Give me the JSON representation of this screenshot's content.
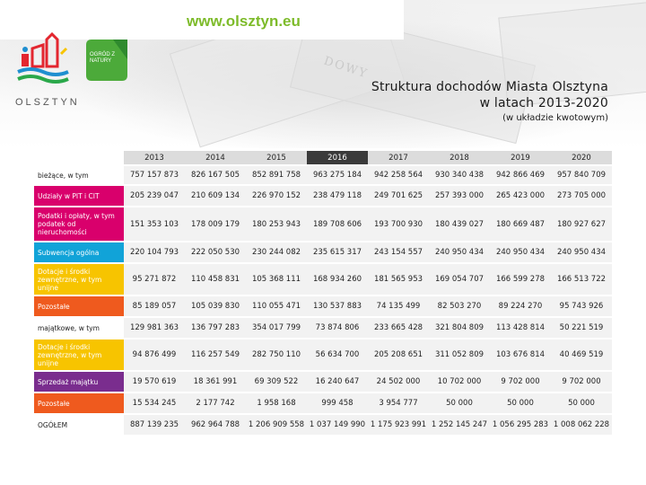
{
  "header": {
    "url": "www.olsztyn.eu",
    "logo_city_text": "OLSZTYN",
    "logo_garden_text": "OGRÓD Z NATURY"
  },
  "title": {
    "line1": "Struktura dochodów Miasta Olsztyna",
    "line2": "w latach 2013-2020",
    "subtitle": "(w układzie kwotowym)"
  },
  "years": [
    "2013",
    "2014",
    "2015",
    "2016",
    "2017",
    "2018",
    "2019",
    "2020"
  ],
  "rows": [
    {
      "label": "bieżące, w tym",
      "values": [
        "757 157 873",
        "826 167 505",
        "852 891 758",
        "963 275 184",
        "942 258 564",
        "930 340 438",
        "942 866 469",
        "957 840 709"
      ]
    },
    {
      "label": "Udziały w PIT i CIT",
      "values": [
        "205 239 047",
        "210 609 134",
        "226 970 152",
        "238 479 118",
        "249 701 625",
        "257 393 000",
        "265 423 000",
        "273 705 000"
      ]
    },
    {
      "label": "Podatki i opłaty, w tym podatek od nieruchomości",
      "values": [
        "151 353 103",
        "178 009 179",
        "180 253 943",
        "189 708 606",
        "193 700 930",
        "180 439 027",
        "180 669 487",
        "180 927 627"
      ]
    },
    {
      "label": "Subwencja ogólna",
      "values": [
        "220 104 793",
        "222 050 530",
        "230 244 082",
        "235 615 317",
        "243 154 557",
        "240 950 434",
        "240 950 434",
        "240 950 434"
      ]
    },
    {
      "label": "Dotacje i środki zewnętrzne, w tym unijne",
      "values": [
        "95 271 872",
        "110 458 831",
        "105 368 111",
        "168 934 260",
        "181 565 953",
        "169 054 707",
        "166 599 278",
        "166 513 722"
      ]
    },
    {
      "label": "Pozostałe",
      "values": [
        "85 189 057",
        "105 039 830",
        "110 055 471",
        "130 537 883",
        "74 135 499",
        "82 503 270",
        "89 224 270",
        "95 743 926"
      ]
    },
    {
      "label": "majątkowe, w tym",
      "values": [
        "129 981 363",
        "136 797 283",
        "354 017 799",
        "73 874 806",
        "233 665 428",
        "321 804 809",
        "113 428 814",
        "50 221 519"
      ]
    },
    {
      "label": "Dotacje i środki zewnętrzne, w tym unijne",
      "values": [
        "94 876 499",
        "116 257 549",
        "282 750 110",
        "56 634 700",
        "205 208 651",
        "311 052 809",
        "103 676 814",
        "40 469 519"
      ]
    },
    {
      "label": "Sprzedaż majątku",
      "values": [
        "19 570 619",
        "18 361 991",
        "69 309 522",
        "16 240 647",
        "24 502 000",
        "10 702 000",
        "9 702 000",
        "9 702 000"
      ]
    },
    {
      "label": "Pozostałe",
      "values": [
        "15 534 245",
        "2 177 742",
        "1 958 168",
        "999 458",
        "3 954 777",
        "50 000",
        "50 000",
        "50 000"
      ]
    },
    {
      "label": "OGÓŁEM",
      "values": [
        "887 139 235",
        "962 964 788",
        "1 206 909 558",
        "1 037 149 990",
        "1 175 923 991",
        "1 252 145 247",
        "1 056 295 283",
        "1 008 062 228"
      ]
    }
  ],
  "colors": {
    "url_green": "#7dbb2a",
    "pit_cit": "#d9006c",
    "subwencja": "#11a3d8",
    "dotacje": "#f7c400",
    "pozostale": "#ef5a1e",
    "sprzedaz": "#7a2d8e",
    "year_dark_header": "#3a3a3a"
  }
}
